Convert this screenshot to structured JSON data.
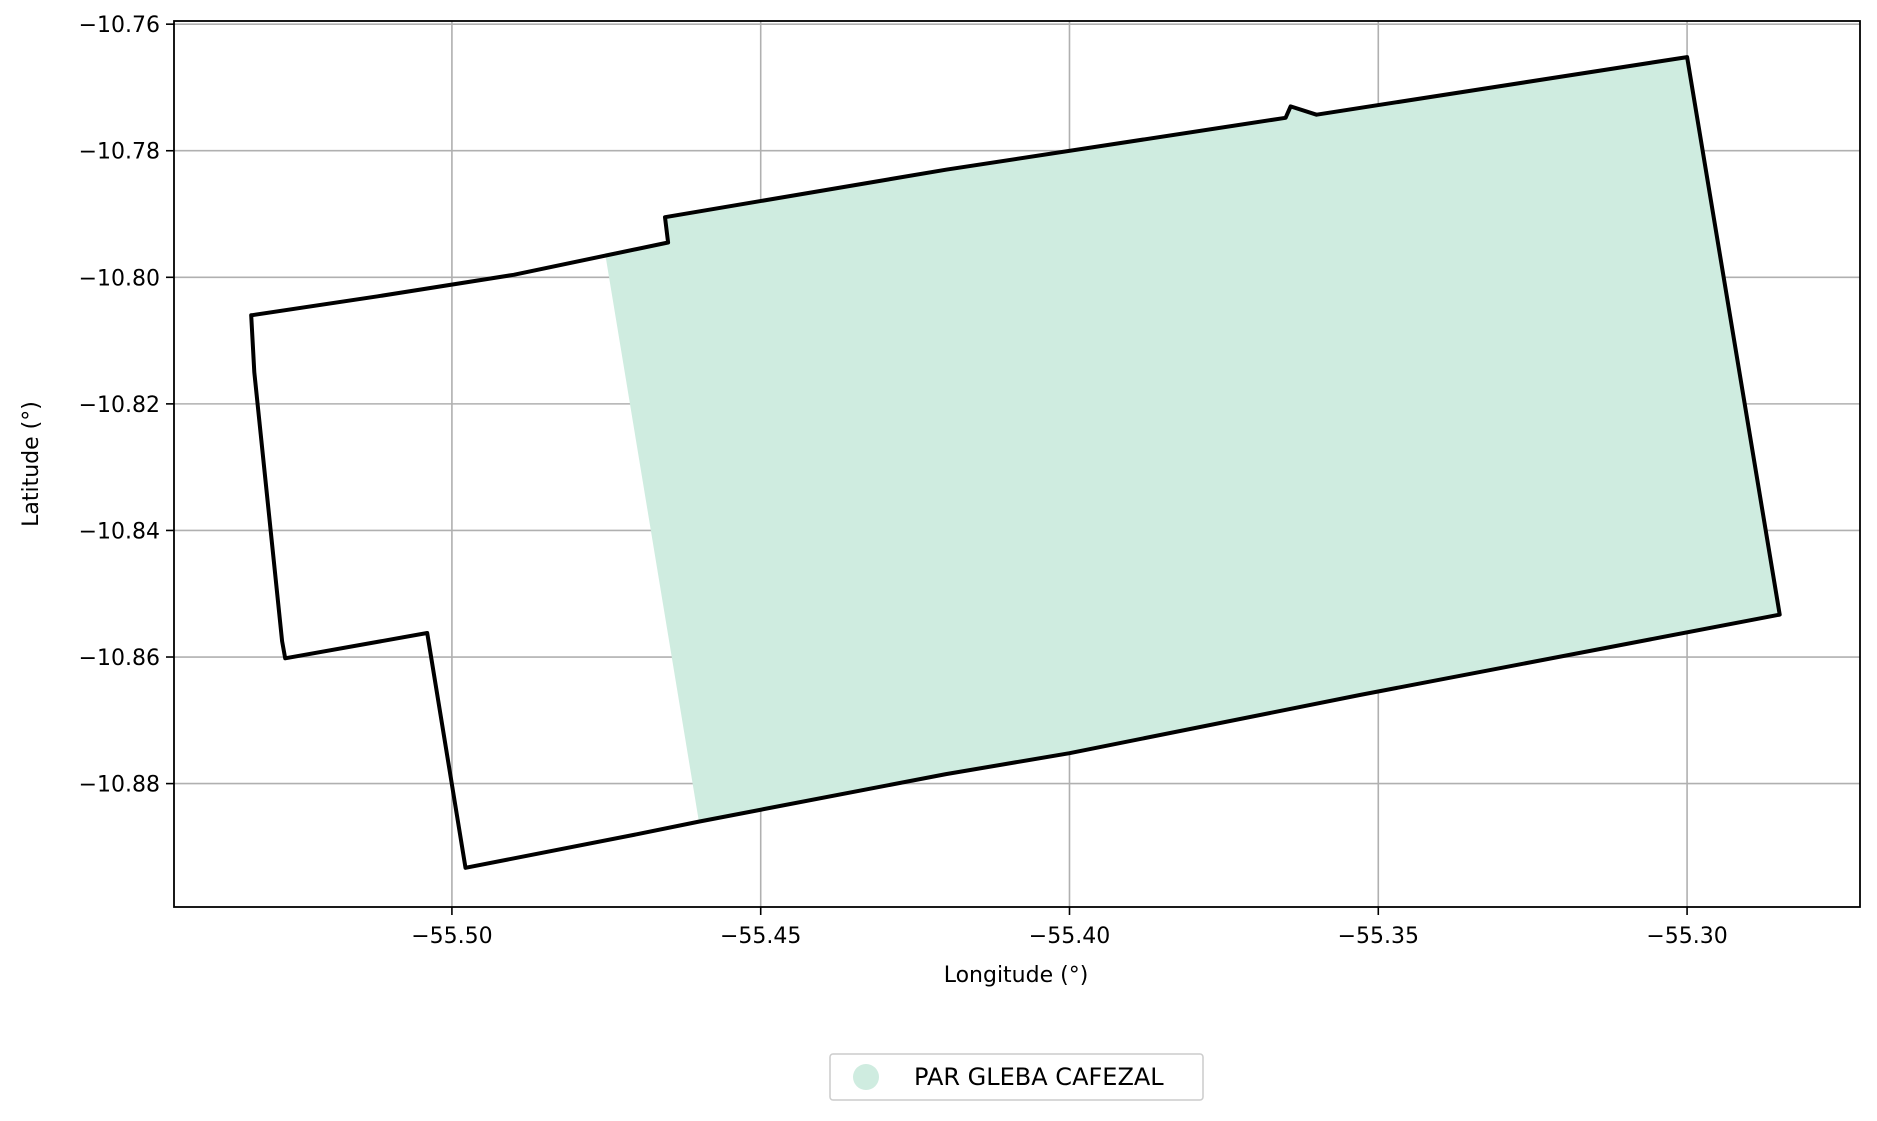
{
  "chart_data": {
    "type": "map",
    "xlabel": "Longitude (°)",
    "ylabel": "Latitude (°)",
    "xlim": [
      -55.545,
      -55.272
    ],
    "ylim": [
      -10.8995,
      -10.7595
    ],
    "grid": true,
    "x_ticks": [
      -55.5,
      -55.45,
      -55.4,
      -55.35,
      -55.3
    ],
    "y_ticks": [
      -10.76,
      -10.78,
      -10.8,
      -10.82,
      -10.84,
      -10.86,
      -10.88
    ],
    "x_tick_labels": [
      "−55.50",
      "−55.45",
      "−55.40",
      "−55.35",
      "−55.30"
    ],
    "y_tick_labels": [
      "−10.76",
      "−10.78",
      "−10.80",
      "−10.82",
      "−10.84",
      "−10.86",
      "−10.88"
    ],
    "legend": {
      "placement": "bottom-center",
      "entries": [
        {
          "label": "PAR GLEBA CAFEZAL",
          "color": "#cfece0"
        }
      ]
    },
    "layers": [
      {
        "name": "PAR GLEBA CAFEZAL",
        "kind": "filled-area",
        "fill_color": "#cfece0",
        "coordinates": [
          [
            -55.4752,
            -10.7962
          ],
          [
            -55.465,
            -10.7945
          ],
          [
            -55.4655,
            -10.7905
          ],
          [
            -55.42,
            -10.783
          ],
          [
            -55.365,
            -10.7748
          ],
          [
            -55.3642,
            -10.773
          ],
          [
            -55.36,
            -10.7743
          ],
          [
            -55.3,
            -10.7652
          ],
          [
            -55.285,
            -10.8533
          ],
          [
            -55.353,
            -10.866
          ],
          [
            -55.4,
            -10.8752
          ],
          [
            -55.42,
            -10.8785
          ],
          [
            -55.46,
            -10.886
          ]
        ]
      },
      {
        "name": "boundary",
        "kind": "outline",
        "stroke_color": "#000000",
        "coordinates": [
          [
            -55.5325,
            -10.806
          ],
          [
            -55.512,
            -10.803
          ],
          [
            -55.49,
            -10.7996
          ],
          [
            -55.465,
            -10.7945
          ],
          [
            -55.4655,
            -10.7905
          ],
          [
            -55.42,
            -10.783
          ],
          [
            -55.365,
            -10.7748
          ],
          [
            -55.3642,
            -10.773
          ],
          [
            -55.36,
            -10.7743
          ],
          [
            -55.3,
            -10.7652
          ],
          [
            -55.285,
            -10.8533
          ],
          [
            -55.353,
            -10.866
          ],
          [
            -55.4,
            -10.8752
          ],
          [
            -55.42,
            -10.8785
          ],
          [
            -55.46,
            -10.886
          ],
          [
            -55.47,
            -10.888
          ],
          [
            -55.4978,
            -10.8933
          ],
          [
            -55.504,
            -10.8562
          ],
          [
            -55.527,
            -10.8602
          ],
          [
            -55.5275,
            -10.8575
          ],
          [
            -55.532,
            -10.815
          ],
          [
            -55.5325,
            -10.806
          ]
        ]
      }
    ]
  }
}
